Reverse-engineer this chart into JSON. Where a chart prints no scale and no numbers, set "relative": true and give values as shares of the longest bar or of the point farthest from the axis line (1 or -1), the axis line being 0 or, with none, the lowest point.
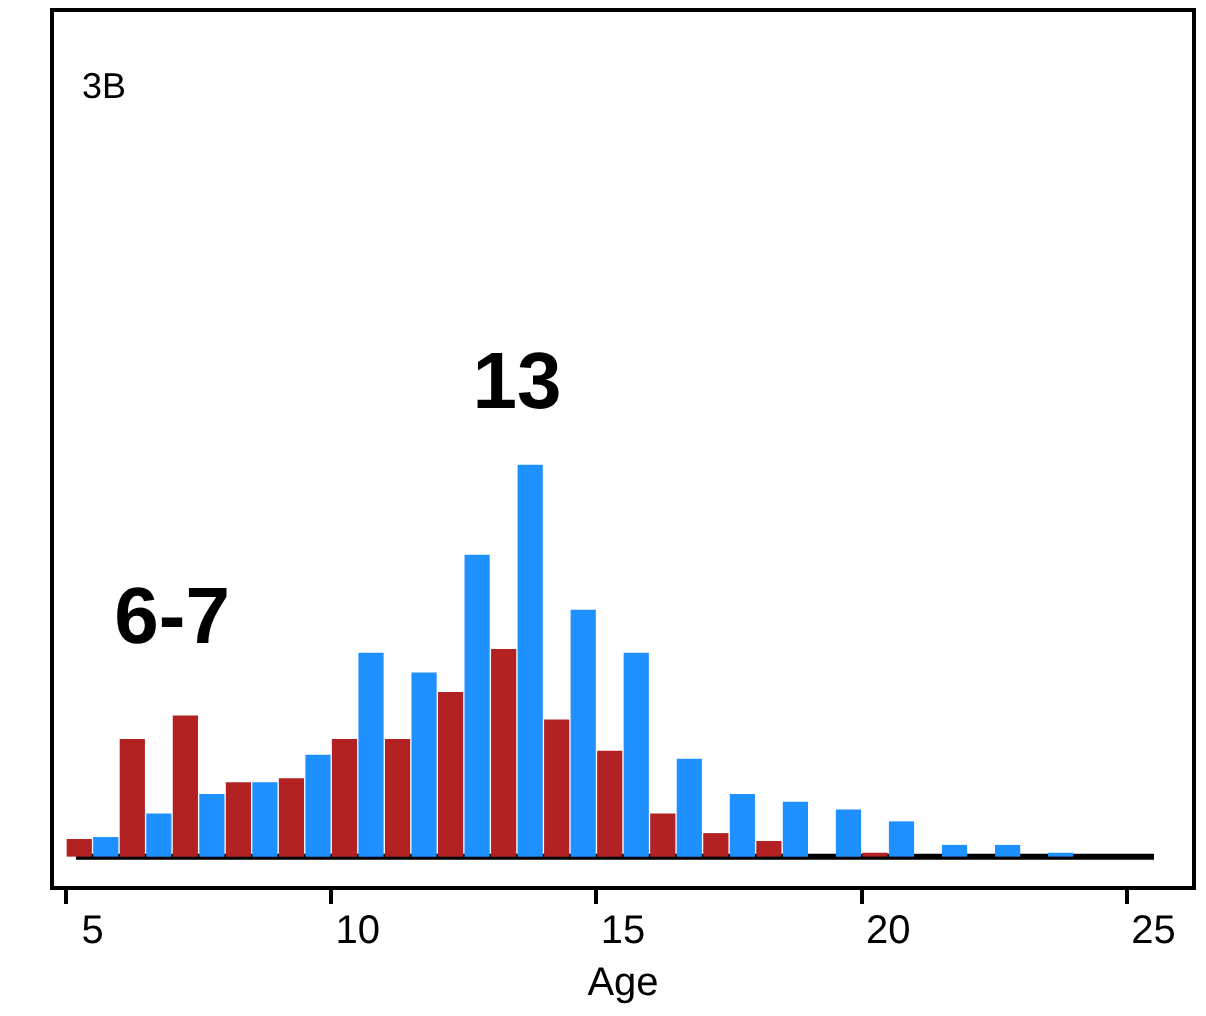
{
  "chart_data": {
    "type": "bar",
    "xlabel": "Age",
    "relative": true,
    "categories": [
      "5",
      null,
      null,
      null,
      null,
      "10",
      null,
      null,
      null,
      null,
      "15",
      null,
      null,
      null,
      null,
      "20",
      null,
      null,
      null,
      null,
      "25"
    ],
    "series": [
      {
        "color": "#b22222",
        "values": [
          0.045,
          0.3,
          0.36,
          0.19,
          0.2,
          0.3,
          0.3,
          0.42,
          0.53,
          0.35,
          0.27,
          0.11,
          0.06,
          0.04,
          null,
          0.01,
          null,
          null,
          null,
          null,
          null
        ]
      },
      {
        "color": "#1e90ff",
        "values": [
          0.05,
          0.11,
          0.16,
          0.19,
          0.26,
          0.52,
          0.47,
          0.77,
          1,
          0.63,
          0.52,
          0.25,
          0.16,
          0.14,
          0.12,
          0.09,
          0.03,
          0.03,
          0.01,
          null,
          null
        ]
      }
    ],
    "annotations": [
      "3B",
      "6-7",
      "13"
    ],
    "legend": false,
    "grid": false
  }
}
